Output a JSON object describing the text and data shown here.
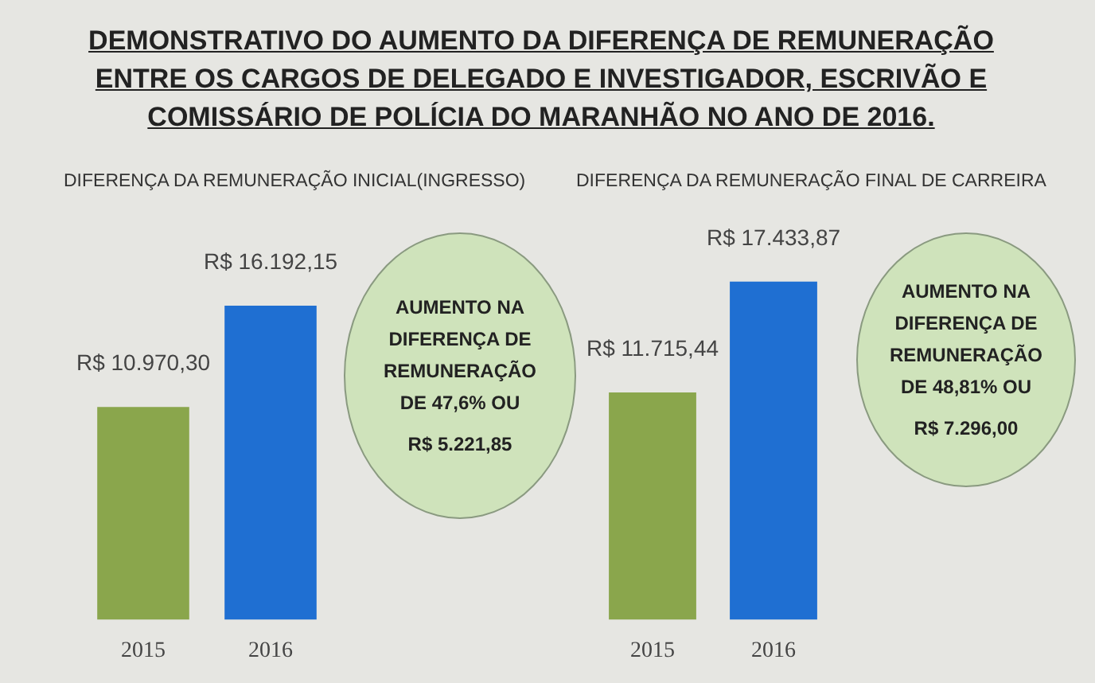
{
  "chart_data": [
    {
      "type": "other",
      "title": "DEMONSTRATIVO  DO AUMENTO DA DIFERENÇA DE REMUNERAÇÃO  ENTRE OS CARGOS DE DELEGADO E INVESTIGADOR, ESCRIVÃO E COMISSÁRIO  DE POLÍCIA DO MARANHÃO  NO ANO DE 2016."
    },
    {
      "type": "bar",
      "title": "DIFERENÇA DA REMUNERAÇÃO INICIAL(INGRESSO)",
      "categories": [
        "2015",
        "2016"
      ],
      "values": [
        10970.3,
        16192.15
      ],
      "colors": [
        "#8aa64c",
        "#1f6fd2"
      ],
      "value_labels": [
        "R$ 10.970,30",
        "R$ 16.192,15"
      ],
      "annotations": [
        "AUMENTO NA DIFERENÇA DE REMUNERAÇÃO DE 47,6% OU",
        "R$ 5.221,85"
      ]
    },
    {
      "type": "bar",
      "title": "DIFERENÇA DA REMUNERAÇÃO FINAL DE CARREIRA",
      "categories": [
        "2015",
        "2016"
      ],
      "values": [
        11715.44,
        17433.87
      ],
      "colors": [
        "#8aa64c",
        "#1f6fd2"
      ],
      "value_labels": [
        "R$ 11.715,44",
        "R$ 17.433,87"
      ],
      "annotations": [
        "AUMENTO NA DIFERENÇA DE REMUNERAÇÃO DE 48,81% OU",
        "R$ 7.296,00"
      ]
    }
  ]
}
